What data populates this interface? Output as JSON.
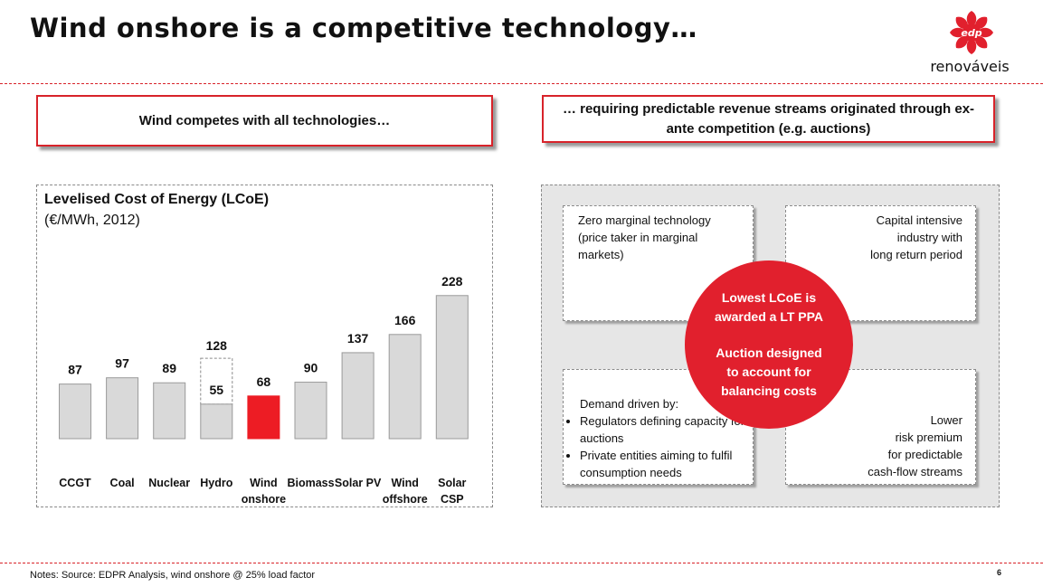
{
  "title": "Wind onshore is a competitive technology…",
  "logo": {
    "mark": "edp",
    "text": "renováveis"
  },
  "left_banner": "Wind competes with all technologies…",
  "right_banner": "… requiring predictable revenue streams originated through ex-ante competition (e.g. auctions)",
  "colors": {
    "accent": "#d8232a",
    "bar": "#d9d9d9",
    "highlight_bar": "#ed1c24"
  },
  "chart_data": {
    "type": "bar",
    "title": "Levelised Cost of Energy (LCoE)",
    "ylabel": "(€/MWh, 2012)",
    "categories": [
      "CCGT",
      "Coal",
      "Nuclear",
      "Hydro",
      "Wind onshore",
      "Biomass",
      "Solar PV",
      "Wind offshore",
      "Solar CSP"
    ],
    "values": [
      87,
      97,
      89,
      55,
      68,
      90,
      137,
      166,
      228
    ],
    "hydro_range": {
      "low": 55,
      "high": 128
    },
    "highlight_category": "Wind onshore",
    "ylim": [
      0,
      230
    ],
    "grid": false
  },
  "quadrants": {
    "top_left": [
      "Zero marginal technology",
      "(price taker in marginal",
      "markets)"
    ],
    "top_right": [
      "Capital intensive",
      "industry with",
      "long return period"
    ],
    "bottom_left": {
      "heading": "Demand driven by:",
      "bullets": [
        "Regulators defining capacity for auctions",
        "Private entities aiming to fulfil consumption needs"
      ]
    },
    "bottom_right": [
      "Lower",
      "risk premium",
      "for predictable",
      "cash-flow streams"
    ]
  },
  "circle": {
    "line1": "Lowest LCoE is awarded a LT PPA",
    "line2": "Auction designed to account for balancing costs"
  },
  "notes": "Notes: Source: EDPR Analysis, wind onshore @ 25% load factor",
  "page_number": "6"
}
